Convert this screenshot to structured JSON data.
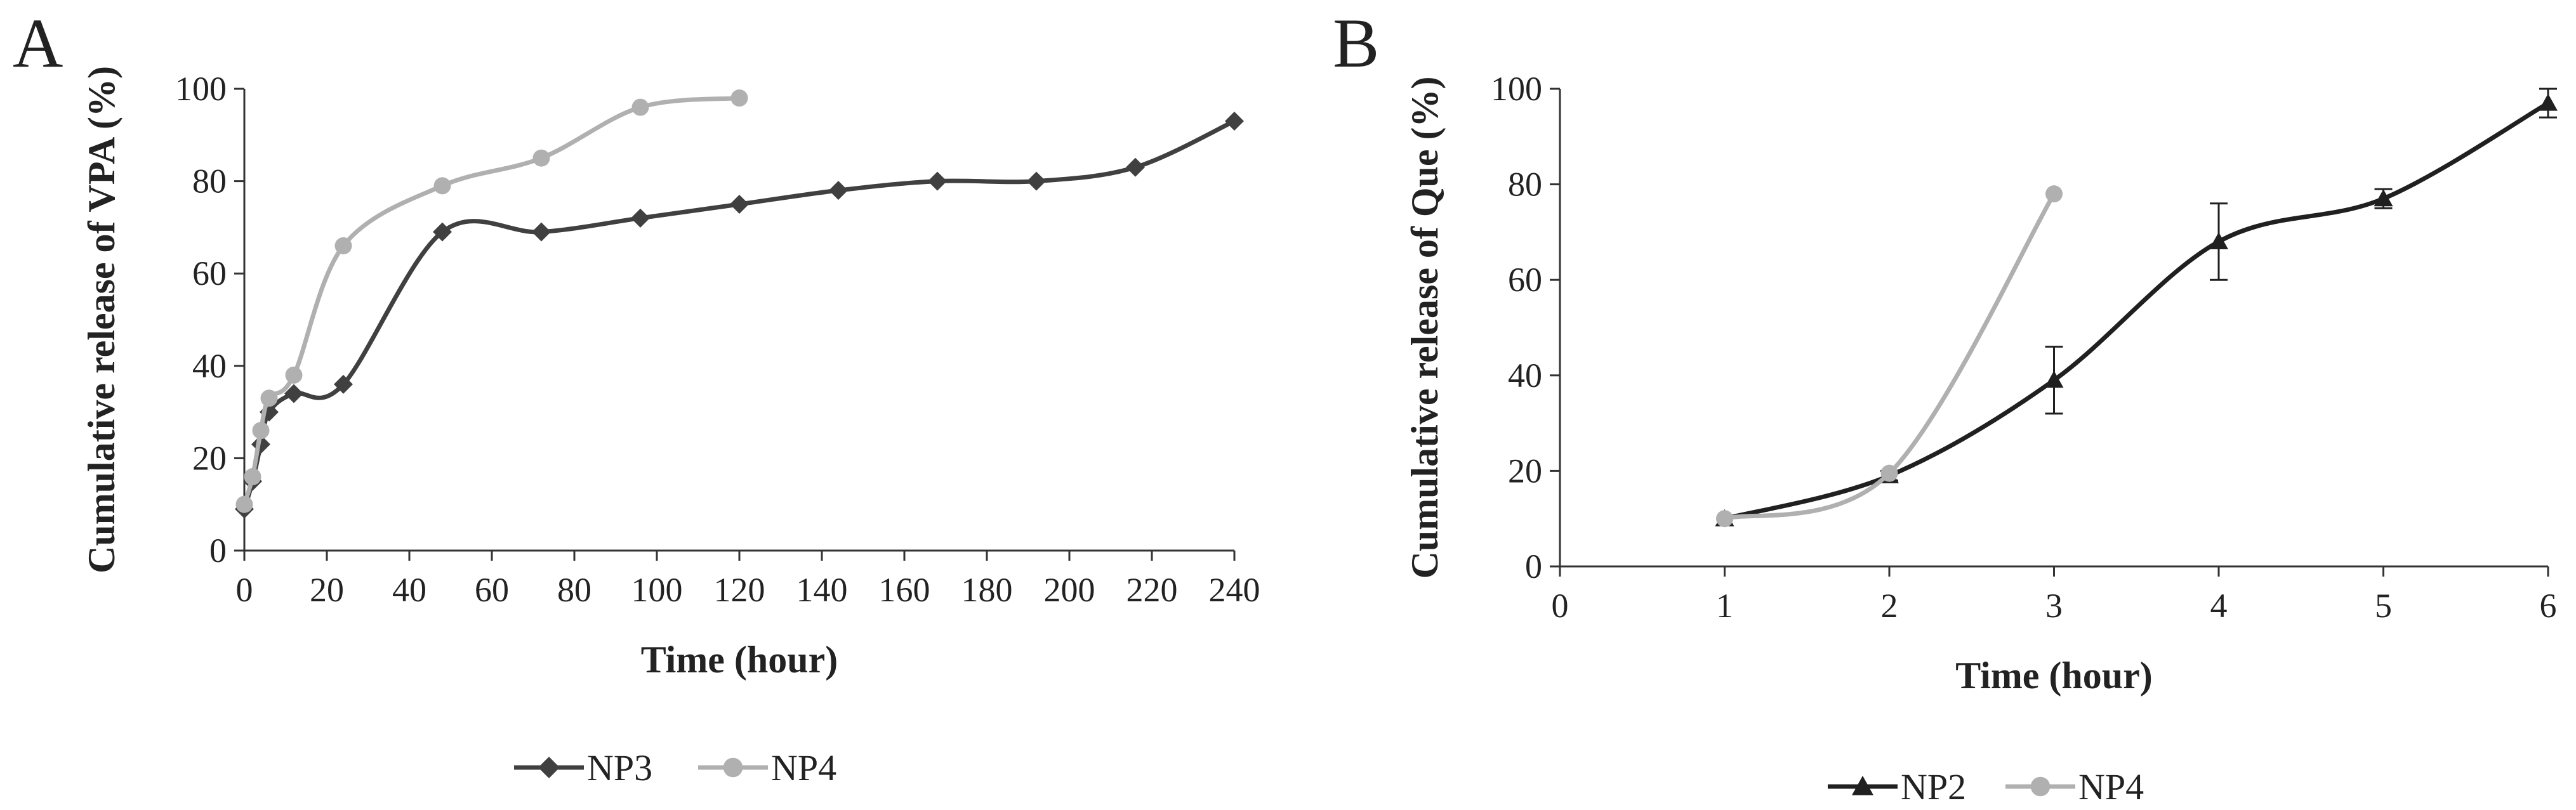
{
  "chart_data": [
    {
      "panel": "A",
      "type": "line",
      "title": "",
      "xlabel": "Time (hour)",
      "ylabel": "Cumulative  release of VPA (%)",
      "xlim": [
        0,
        240
      ],
      "ylim": [
        0,
        100
      ],
      "xticks": [
        "0",
        "20",
        "40",
        "60",
        "80",
        "100",
        "120",
        "140",
        "160",
        "180",
        "200",
        "220",
        "240"
      ],
      "yticks": [
        "0",
        "20",
        "40",
        "60",
        "80",
        "100"
      ],
      "grid": false,
      "legend_position": "bottom",
      "series": [
        {
          "name": "NP3",
          "color": "#404040",
          "marker": "diamond",
          "x": [
            0,
            2,
            4,
            6,
            12,
            24,
            48,
            72,
            96,
            120,
            144,
            168,
            192,
            216,
            240
          ],
          "y": [
            9,
            15,
            23,
            30,
            34,
            36,
            69,
            69,
            72,
            75,
            78,
            80,
            80,
            83,
            93
          ]
        },
        {
          "name": "NP4",
          "color": "#b0b0b0",
          "marker": "circle",
          "x": [
            0,
            2,
            4,
            6,
            12,
            24,
            48,
            72,
            96,
            120
          ],
          "y": [
            10,
            16,
            26,
            33,
            38,
            66,
            79,
            85,
            96,
            98
          ]
        }
      ]
    },
    {
      "panel": "B",
      "type": "line",
      "title": "",
      "xlabel": "Time (hour)",
      "ylabel": "Cumulative  release of Que (%)",
      "xlim": [
        0,
        6
      ],
      "ylim": [
        0,
        100
      ],
      "xticks": [
        "0",
        "1",
        "2",
        "3",
        "4",
        "5",
        "6"
      ],
      "yticks": [
        "0",
        "20",
        "40",
        "60",
        "80",
        "100"
      ],
      "grid": false,
      "legend_position": "bottom",
      "series": [
        {
          "name": "NP2",
          "color": "#202020",
          "marker": "triangle",
          "x": [
            1,
            2,
            3,
            4,
            5,
            6
          ],
          "y": [
            10,
            19,
            39,
            68,
            77,
            97
          ],
          "error": [
            0,
            1,
            7,
            8,
            2,
            3
          ]
        },
        {
          "name": "NP4",
          "color": "#b0b0b0",
          "marker": "circle",
          "x": [
            1,
            2,
            3
          ],
          "y": [
            10,
            19.5,
            78
          ]
        }
      ]
    }
  ]
}
